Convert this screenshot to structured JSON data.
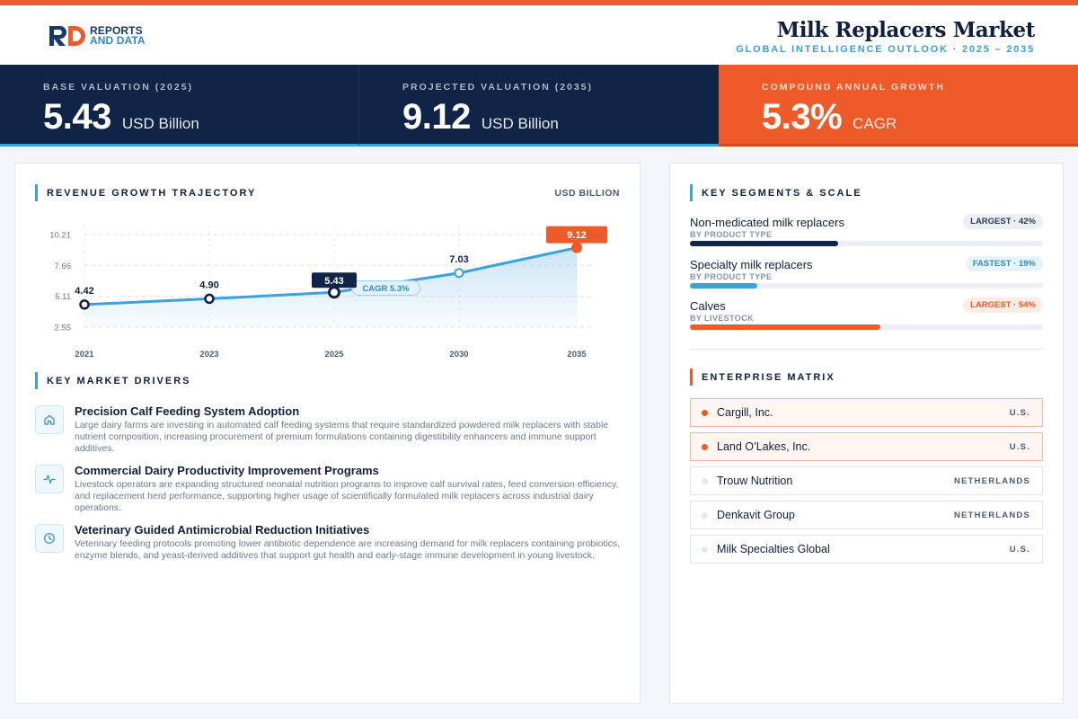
{
  "brand": {
    "line1": "REPORTS",
    "line2": "AND DATA"
  },
  "header": {
    "title": "Milk Replacers Market",
    "subtitle": "GLOBAL INTELLIGENCE OUTLOOK  ·  2025 – 2035"
  },
  "colors": {
    "navy": "#102448",
    "accent_orange": "#ee5a2a",
    "accent_blue": "#3ba3d9"
  },
  "kpis": [
    {
      "label": "BASE VALUATION (2025)",
      "value": "5.43",
      "unit": "USD Billion"
    },
    {
      "label": "PROJECTED VALUATION (2035)",
      "value": "9.12",
      "unit": "USD Billion"
    },
    {
      "label": "COMPOUND ANNUAL GROWTH",
      "value": "5.3%",
      "unit": "CAGR"
    }
  ],
  "revenue": {
    "heading": "REVENUE GROWTH TRAJECTORY",
    "unit_label": "USD BILLION",
    "cagr_label": "CAGR 5.3%"
  },
  "chart_data": {
    "type": "line",
    "title": "REVENUE GROWTH TRAJECTORY",
    "ylabel": "USD BILLION",
    "categories": [
      "2021",
      "2023",
      "2025",
      "2030",
      "2035"
    ],
    "values": [
      4.42,
      4.9,
      5.43,
      7.03,
      9.12
    ],
    "value_labels": [
      "4.42",
      "4.90",
      "5.43",
      "7.03",
      "9.12"
    ],
    "y_ticks": [
      "10.21",
      "7.66",
      "5.11",
      "2.55"
    ],
    "y_tick_values": [
      10.21,
      7.66,
      5.11,
      2.55
    ],
    "ylim": [
      2.55,
      10.21
    ],
    "grid": true,
    "annotation": "CAGR 5.3%"
  },
  "drivers": {
    "heading": "KEY MARKET DRIVERS",
    "items": [
      {
        "icon": "home-icon",
        "title": "Precision Calf Feeding System Adoption",
        "desc": "Large dairy farms are investing in automated calf feeding systems that require standardized powdered milk replacers with stable nutrient composition, increasing procurement of premium formulations containing digestibility enhancers and immune support additives."
      },
      {
        "icon": "pulse-icon",
        "title": "Commercial Dairy Productivity Improvement Programs",
        "desc": "Livestock operators are expanding structured neonatal nutrition programs to improve calf survival rates, feed conversion efficiency, and replacement herd performance, supporting higher usage of scientifically formulated milk replacers across industrial dairy operations."
      },
      {
        "icon": "clock-icon",
        "title": "Veterinary Guided Antimicrobial Reduction Initiatives",
        "desc": "Veterinary feeding protocols promoting lower antibiotic dependence are increasing demand for milk replacers containing probiotics, enzyme blends, and yeast-derived additives that support gut health and early-stage immune development in young livestock."
      }
    ]
  },
  "segments": {
    "heading": "KEY SEGMENTS & SCALE",
    "items": [
      {
        "name": "Non-medicated milk replacers",
        "sub": "BY PRODUCT TYPE",
        "badge": "LARGEST · 42%",
        "share": 0.42,
        "color": "#102448"
      },
      {
        "name": "Specialty milk replacers",
        "sub": "BY PRODUCT TYPE",
        "badge": "FASTEST · 19%",
        "share": 0.19,
        "color": "#3ba3d9"
      },
      {
        "name": "Calves",
        "sub": "BY LIVESTOCK",
        "badge": "LARGEST · 54%",
        "share": 0.54,
        "color": "#ee5a2a"
      }
    ]
  },
  "enterprise": {
    "heading": "ENTERPRISE MATRIX",
    "items": [
      {
        "name": "Cargill, Inc.",
        "country": "U.S."
      },
      {
        "name": "Land O’Lakes, Inc.",
        "country": "U.S."
      },
      {
        "name": "Trouw Nutrition",
        "country": "NETHERLANDS"
      },
      {
        "name": "Denkavit Group",
        "country": "NETHERLANDS"
      },
      {
        "name": "Milk Specialties Global",
        "country": "U.S."
      }
    ]
  }
}
